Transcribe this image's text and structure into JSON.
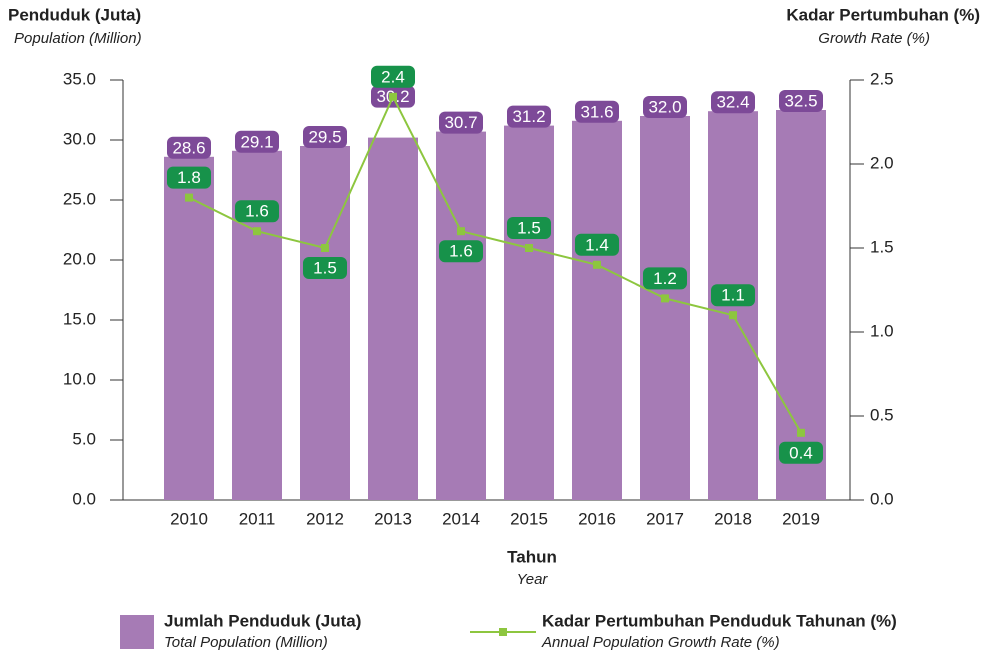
{
  "chart_data": {
    "type": "bar_line",
    "y_title": "Penduduk (Juta)",
    "y_subtitle": "Population (Million)",
    "y2_title": "Kadar Pertumbuhan (%)",
    "y2_subtitle": "Growth Rate (%)",
    "x_title": "Tahun",
    "x_subtitle": "Year",
    "categories": [
      "2010",
      "2011",
      "2012",
      "2013",
      "2014",
      "2015",
      "2016",
      "2017",
      "2018",
      "2019"
    ],
    "series": [
      {
        "name": "Jumlah Penduduk (Juta)",
        "subname": "Total Population (Million)",
        "type": "bar",
        "color": "#a67bb5",
        "label_color": "#7d4a98",
        "values": [
          28.6,
          29.1,
          29.5,
          30.2,
          30.7,
          31.2,
          31.6,
          32.0,
          32.4,
          32.5
        ],
        "value_labels": [
          "28.6",
          "29.1",
          "29.5",
          "30.2",
          "30.7",
          "31.2",
          "31.6",
          "32.0",
          "32.4",
          "32.5"
        ]
      },
      {
        "name": "Kadar Pertumbuhan Penduduk Tahunan (%)",
        "subname": "Annual Population Growth Rate (%)",
        "type": "line",
        "axis": "y2",
        "color": "#8dc63f",
        "label_color": "#17924a",
        "values": [
          1.8,
          1.6,
          1.5,
          2.4,
          1.6,
          1.5,
          1.4,
          1.2,
          1.1,
          0.4
        ]
      }
    ],
    "ylim": [
      0,
      35
    ],
    "yticks": [
      {
        "value": 0,
        "label": "0.0"
      },
      {
        "value": 5,
        "label": "5.0"
      },
      {
        "value": 10,
        "label": "10.0"
      },
      {
        "value": 15,
        "label": "15.0"
      },
      {
        "value": 20,
        "label": "20.0"
      },
      {
        "value": 25,
        "label": "25.0"
      },
      {
        "value": 30,
        "label": "30.0"
      },
      {
        "value": 35,
        "label": "35.0"
      }
    ],
    "y2lim": [
      0,
      2.5
    ],
    "y2ticks": [
      {
        "value": 0,
        "label": "0.0"
      },
      0.5,
      {
        "value": 1,
        "label": "1.0"
      },
      1.5,
      {
        "value": 2,
        "label": "2.0"
      },
      2.5
    ]
  }
}
